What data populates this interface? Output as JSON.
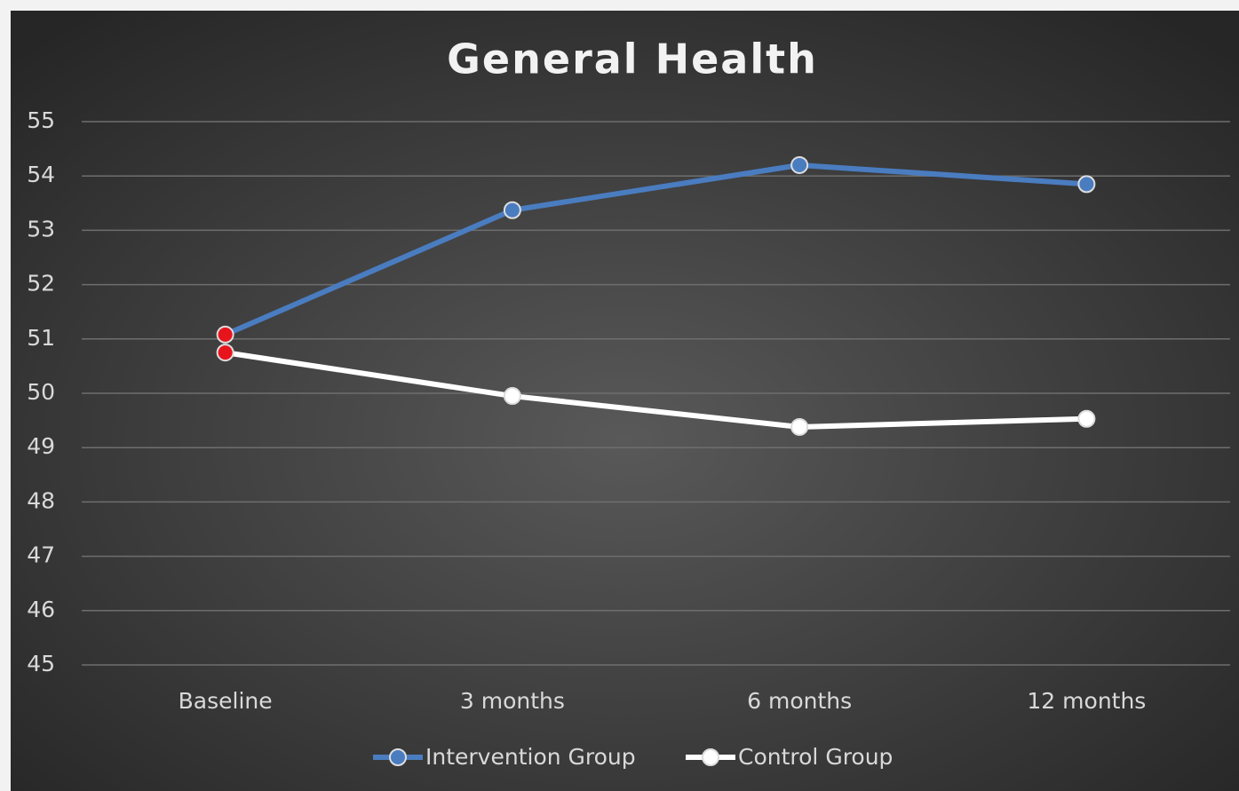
{
  "chart_data": {
    "type": "line",
    "title": "General Health",
    "categories": [
      "Baseline",
      "3 months",
      "6 months",
      "12 months"
    ],
    "series": [
      {
        "name": "Intervention Group",
        "color": "#4a7cc0",
        "marker_colors": [
          "#e8141c",
          "#4a7cc0",
          "#4a7cc0",
          "#4a7cc0"
        ],
        "values": [
          51.08,
          53.37,
          54.2,
          53.85
        ]
      },
      {
        "name": "Control Group",
        "color": "#ffffff",
        "marker_colors": [
          "#e8141c",
          "#ffffff",
          "#ffffff",
          "#ffffff"
        ],
        "values": [
          50.75,
          49.95,
          49.38,
          49.53
        ]
      }
    ],
    "ylim": [
      45,
      55
    ],
    "yticks": [
      45,
      46,
      47,
      48,
      49,
      50,
      51,
      52,
      53,
      54,
      55
    ],
    "grid": true,
    "legend": "bottom"
  }
}
